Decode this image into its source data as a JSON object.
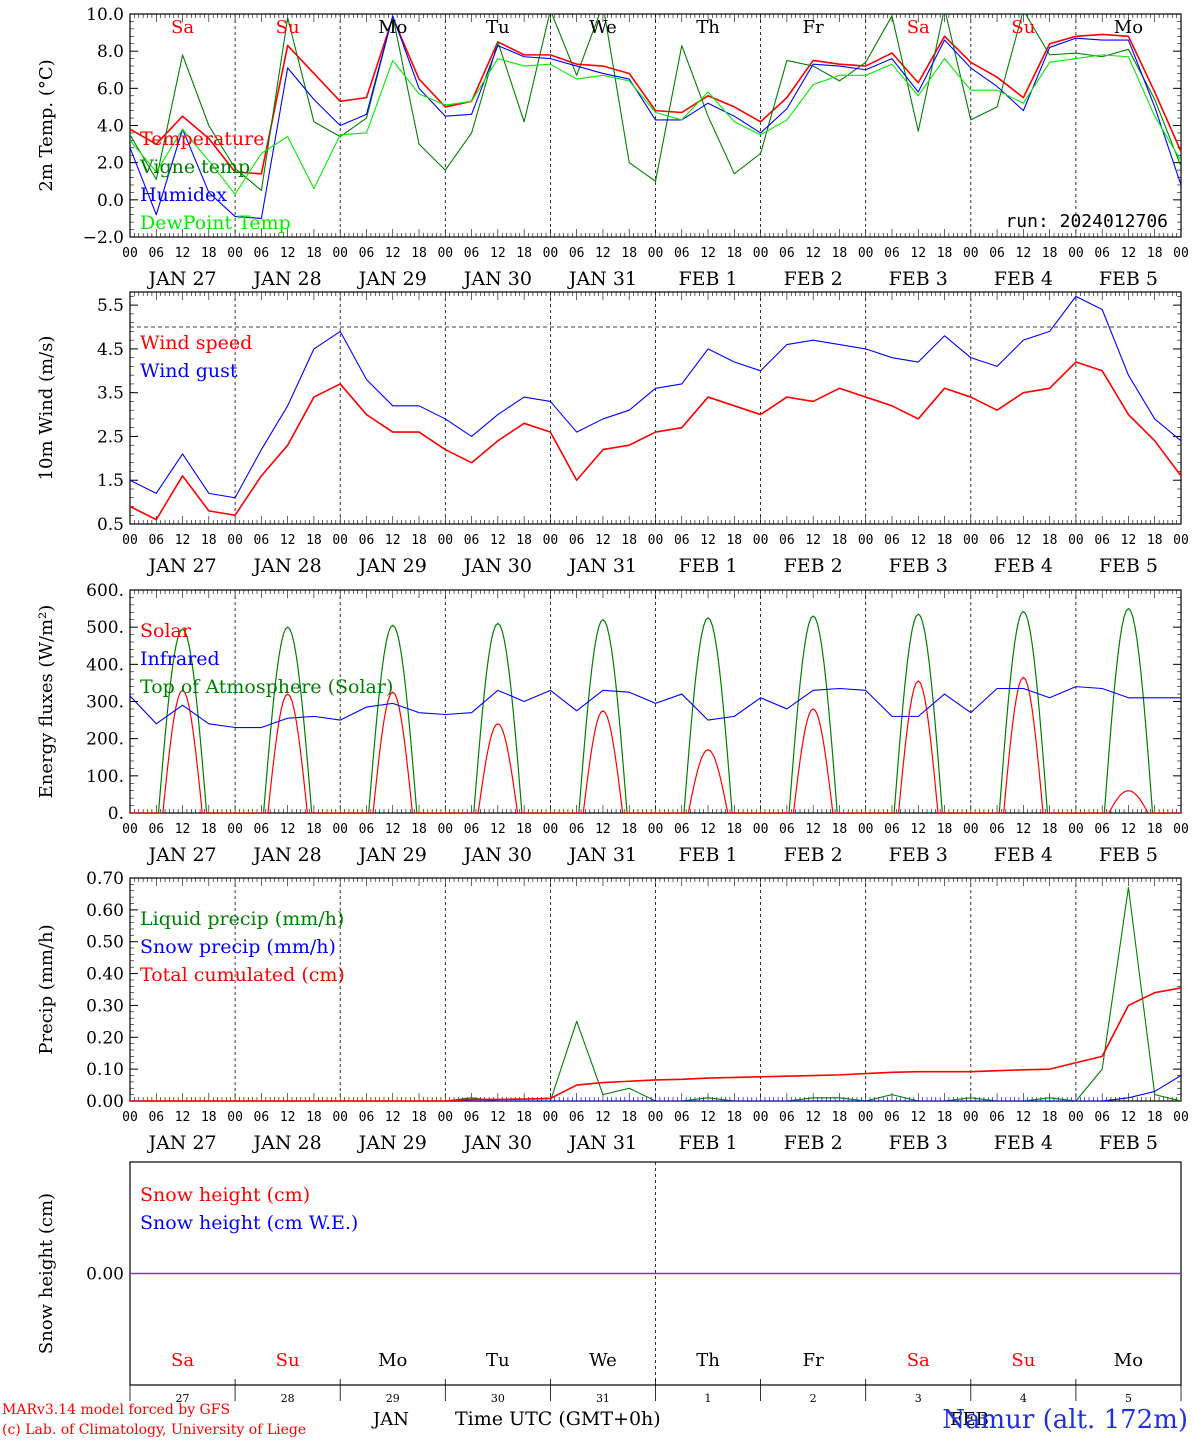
{
  "footer": {
    "credit1": "MARv3.14 model forced by GFS",
    "credit2": "(c) Lab. of Climatology, University of Liege",
    "month": "JAN",
    "month2": "FEB",
    "time_label": "Time UTC (GMT+0h)",
    "station": "Namur (alt. 172m)"
  },
  "colors": {
    "red": "#ff0000",
    "blue": "#0000ff",
    "green": "#008000",
    "lightgreen": "#00ee00",
    "purple": "#8040a0"
  },
  "days": {
    "weekday": [
      "Sa",
      "Su",
      "Mo",
      "Tu",
      "We",
      "Th",
      "Fr",
      "Sa",
      "Su",
      "Mo"
    ],
    "weekday_colors": [
      "#ff0000",
      "#ff0000",
      "#000000",
      "#000000",
      "#000000",
      "#000000",
      "#000000",
      "#ff0000",
      "#ff0000",
      "#000000"
    ],
    "dates": [
      "JAN 27",
      "JAN 28",
      "JAN 29",
      "JAN 30",
      "JAN 31",
      "FEB  1",
      "FEB  2",
      "FEB  3",
      "FEB  4",
      "FEB  5"
    ],
    "day_numbers": [
      "27",
      "28",
      "29",
      "30",
      "31",
      "1",
      "2",
      "3",
      "4",
      "5"
    ],
    "hour_ticks": [
      "00",
      "06",
      "12",
      "18"
    ],
    "final_hour": "00"
  },
  "chart_data": [
    {
      "id": "temp",
      "type": "line",
      "ylabel": "2m Temp. (°C)",
      "ylim": [
        -2.0,
        10.0
      ],
      "yticks": [
        "−2.0",
        "0.0",
        "2.0",
        "4.0",
        "6.0",
        "8.0",
        "10.0"
      ],
      "ytick_values": [
        -2,
        0,
        2,
        4,
        6,
        8,
        10
      ],
      "annotation": "run: 2024012706",
      "legend": [
        "Temperature",
        "Vigne temp",
        "Humidex",
        "DewPoint Temp"
      ],
      "x_hours": [
        0,
        6,
        12,
        18,
        24,
        30,
        36,
        42,
        48,
        54,
        60,
        66,
        72,
        78,
        84,
        90,
        96,
        102,
        108,
        114,
        120,
        126,
        132,
        138,
        144,
        150,
        156,
        162,
        168,
        174,
        180,
        186,
        192,
        198,
        204,
        210,
        216,
        222,
        228,
        234,
        240
      ],
      "series": [
        {
          "name": "Temperature",
          "color": "#ff0000",
          "values": [
            3.8,
            3.0,
            4.5,
            3.3,
            1.5,
            1.4,
            8.3,
            6.8,
            5.3,
            5.5,
            9.8,
            6.5,
            5.0,
            5.3,
            8.5,
            7.8,
            7.8,
            7.3,
            7.2,
            6.8,
            4.8,
            4.7,
            5.6,
            5.0,
            4.2,
            5.5,
            7.5,
            7.3,
            7.2,
            7.9,
            6.3,
            8.8,
            7.4,
            6.6,
            5.5,
            8.4,
            8.8,
            8.9,
            8.8,
            5.8,
            2.6
          ]
        },
        {
          "name": "Vigne temp",
          "color": "#008000",
          "values": [
            3.5,
            1.1,
            7.8,
            4.0,
            1.7,
            0.5,
            9.8,
            4.2,
            3.4,
            4.4,
            9.9,
            3.0,
            1.6,
            3.6,
            8.5,
            4.2,
            10.2,
            6.7,
            10.5,
            2.0,
            1.0,
            8.3,
            4.5,
            1.4,
            2.5,
            7.5,
            7.2,
            6.4,
            7.4,
            9.9,
            3.7,
            10.3,
            4.3,
            5.0,
            10.2,
            7.8,
            7.9,
            7.7,
            8.1,
            5.4,
            1.8
          ]
        },
        {
          "name": "Humidex",
          "color": "#0000ff",
          "values": [
            2.8,
            -0.8,
            3.8,
            0.4,
            -0.9,
            -1.0,
            7.1,
            5.4,
            4.0,
            4.6,
            9.9,
            6.0,
            4.5,
            4.6,
            8.3,
            7.7,
            7.6,
            7.2,
            6.8,
            6.5,
            4.3,
            4.3,
            5.2,
            4.5,
            3.6,
            4.9,
            7.3,
            7.2,
            7.0,
            7.6,
            5.8,
            8.6,
            7.1,
            6.1,
            4.8,
            8.2,
            8.7,
            8.6,
            8.6,
            5.0,
            0.8
          ]
        },
        {
          "name": "DewPoint Temp",
          "color": "#00ee00",
          "values": [
            3.2,
            1.5,
            3.8,
            2.1,
            0.3,
            2.5,
            3.4,
            0.6,
            3.5,
            3.6,
            7.5,
            5.7,
            5.1,
            5.3,
            7.6,
            7.2,
            7.3,
            6.5,
            6.7,
            6.4,
            4.7,
            4.3,
            5.8,
            4.2,
            3.5,
            4.3,
            6.2,
            6.7,
            6.7,
            7.3,
            5.6,
            7.6,
            5.9,
            5.9,
            5.2,
            7.4,
            7.6,
            7.8,
            7.7,
            4.5,
            2.1
          ]
        }
      ]
    },
    {
      "id": "wind",
      "type": "line",
      "ylabel": "10m Wind (m/s)",
      "ylim": [
        0.5,
        5.8
      ],
      "yticks": [
        "0.5",
        "1.5",
        "2.5",
        "3.5",
        "4.5",
        "5.5"
      ],
      "ytick_values": [
        0.5,
        1.5,
        2.5,
        3.5,
        4.5,
        5.5
      ],
      "dashed_line": 5.0,
      "legend": [
        "Wind speed",
        "Wind gust"
      ],
      "x_hours": [
        0,
        6,
        12,
        18,
        24,
        30,
        36,
        42,
        48,
        54,
        60,
        66,
        72,
        78,
        84,
        90,
        96,
        102,
        108,
        114,
        120,
        126,
        132,
        138,
        144,
        150,
        156,
        162,
        168,
        174,
        180,
        186,
        192,
        198,
        204,
        210,
        216,
        222,
        228,
        234,
        240
      ],
      "series": [
        {
          "name": "Wind speed",
          "color": "#ff0000",
          "values": [
            0.9,
            0.6,
            1.6,
            0.8,
            0.7,
            1.6,
            2.3,
            3.4,
            3.7,
            3.0,
            2.6,
            2.6,
            2.2,
            1.9,
            2.4,
            2.8,
            2.6,
            1.5,
            2.2,
            2.3,
            2.6,
            2.7,
            3.4,
            3.2,
            3.0,
            3.4,
            3.3,
            3.6,
            3.4,
            3.2,
            2.9,
            3.6,
            3.4,
            3.1,
            3.5,
            3.6,
            4.2,
            4.0,
            3.0,
            2.4,
            1.6
          ]
        },
        {
          "name": "Wind gust",
          "color": "#0000ff",
          "values": [
            1.5,
            1.2,
            2.1,
            1.2,
            1.1,
            2.2,
            3.2,
            4.5,
            4.9,
            3.8,
            3.2,
            3.2,
            2.9,
            2.5,
            3.0,
            3.4,
            3.3,
            2.6,
            2.9,
            3.1,
            3.6,
            3.7,
            4.5,
            4.2,
            4.0,
            4.6,
            4.7,
            4.6,
            4.5,
            4.3,
            4.2,
            4.8,
            4.3,
            4.1,
            4.7,
            4.9,
            5.7,
            5.4,
            3.9,
            2.9,
            2.4
          ]
        }
      ]
    },
    {
      "id": "energy",
      "type": "line",
      "ylabel": "Energy fluxes (W/m²)",
      "ylim": [
        0,
        600
      ],
      "yticks": [
        "0.",
        "100.",
        "200.",
        "300.",
        "400.",
        "500.",
        "600."
      ],
      "ytick_values": [
        0,
        100,
        200,
        300,
        400,
        500,
        600
      ],
      "legend": [
        "Solar",
        "Infrared",
        "Top of Atmosphere (Solar)"
      ],
      "toa_peaks": [
        495,
        500,
        505,
        510,
        520,
        525,
        530,
        535,
        542,
        550
      ],
      "solar_peaks": [
        330,
        320,
        325,
        240,
        275,
        170,
        280,
        355,
        365,
        60
      ],
      "daylight_start": 7.5,
      "daylight_end": 16.5,
      "x_hours": [
        0,
        6,
        12,
        18,
        24,
        30,
        36,
        42,
        48,
        54,
        60,
        66,
        72,
        78,
        84,
        90,
        96,
        102,
        108,
        114,
        120,
        126,
        132,
        138,
        144,
        150,
        156,
        162,
        168,
        174,
        180,
        186,
        192,
        198,
        204,
        210,
        216,
        222,
        228,
        234,
        240
      ],
      "series": [
        {
          "name": "Infrared",
          "color": "#0000ff",
          "values": [
            315,
            240,
            290,
            240,
            230,
            230,
            255,
            260,
            250,
            285,
            295,
            270,
            265,
            270,
            330,
            300,
            330,
            275,
            330,
            325,
            295,
            320,
            250,
            260,
            310,
            280,
            330,
            335,
            330,
            260,
            260,
            320,
            270,
            335,
            335,
            310,
            340,
            335,
            310,
            310,
            310
          ]
        }
      ]
    },
    {
      "id": "precip",
      "type": "line",
      "ylabel": "Precip (mm/h)",
      "ylim": [
        0,
        0.7
      ],
      "yticks": [
        "0.00",
        "0.10",
        "0.20",
        "0.30",
        "0.40",
        "0.50",
        "0.60",
        "0.70"
      ],
      "ytick_values": [
        0,
        0.1,
        0.2,
        0.3,
        0.4,
        0.5,
        0.6,
        0.7
      ],
      "legend": [
        "Liquid precip (mm/h)",
        "Snow precip (mm/h)",
        "Total cumulated (cm)"
      ],
      "x_hours": [
        0,
        6,
        12,
        18,
        24,
        30,
        36,
        42,
        48,
        54,
        60,
        66,
        72,
        78,
        84,
        90,
        96,
        102,
        108,
        114,
        120,
        126,
        132,
        138,
        144,
        150,
        156,
        162,
        168,
        174,
        180,
        186,
        192,
        198,
        204,
        210,
        216,
        222,
        228,
        234,
        240
      ],
      "series": [
        {
          "name": "Liquid precip (mm/h)",
          "color": "#008000",
          "values": [
            0,
            0,
            0,
            0,
            0,
            0,
            0,
            0,
            0,
            0,
            0,
            0,
            0,
            0.01,
            0,
            0,
            0,
            0.25,
            0.02,
            0.04,
            0,
            0,
            0.01,
            0,
            0,
            0,
            0.01,
            0.01,
            0,
            0.02,
            0,
            0,
            0.01,
            0,
            0,
            0.01,
            0,
            0.1,
            0.67,
            0.02,
            0
          ]
        },
        {
          "name": "Snow precip (mm/h)",
          "color": "#0000ff",
          "values": [
            0,
            0,
            0,
            0,
            0,
            0,
            0,
            0,
            0,
            0,
            0,
            0,
            0,
            0,
            0,
            0,
            0,
            0,
            0,
            0,
            0,
            0,
            0,
            0,
            0,
            0,
            0,
            0,
            0,
            0,
            0,
            0,
            0,
            0,
            0,
            0,
            0,
            0,
            0.01,
            0.03,
            0.08
          ]
        },
        {
          "name": "Total cumulated (cm)",
          "color": "#ff0000",
          "values": [
            0,
            0,
            0,
            0,
            0,
            0,
            0,
            0,
            0,
            0,
            0,
            0,
            0,
            0.005,
            0.005,
            0.006,
            0.008,
            0.05,
            0.058,
            0.062,
            0.066,
            0.068,
            0.072,
            0.074,
            0.076,
            0.078,
            0.08,
            0.082,
            0.086,
            0.09,
            0.092,
            0.092,
            0.092,
            0.095,
            0.098,
            0.1,
            0.12,
            0.14,
            0.3,
            0.34,
            0.355
          ]
        }
      ]
    },
    {
      "id": "snow",
      "type": "line",
      "ylabel": "Snow height (cm)",
      "ylim": [
        -0.5,
        0.5
      ],
      "yticks": [
        "0.00"
      ],
      "ytick_values": [
        0
      ],
      "legend": [
        "Snow height (cm)",
        "Snow height (cm W.E.)"
      ],
      "x_hours": [
        0,
        240
      ],
      "series": [
        {
          "name": "Snow height (cm)",
          "color": "#8040a0",
          "values": [
            0,
            0
          ]
        }
      ]
    }
  ]
}
